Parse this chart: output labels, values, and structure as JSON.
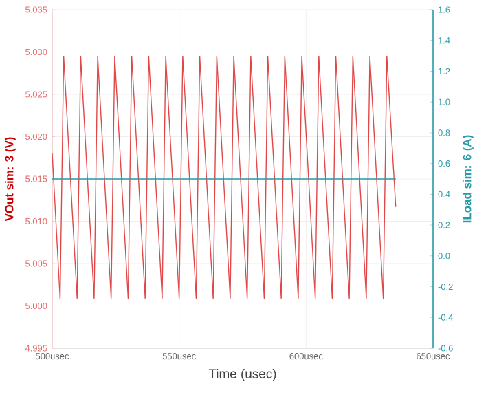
{
  "chart_data": {
    "type": "line",
    "xlabel": "Time (usec)",
    "ylabel": "VOut sim: 3 (V)",
    "y2label": "ILoad sim: 6 (A)",
    "xlim": [
      500,
      650
    ],
    "xticks": [
      {
        "value": 500,
        "label": "500usec"
      },
      {
        "value": 550,
        "label": "550usec"
      },
      {
        "value": 600,
        "label": "600usec"
      },
      {
        "value": 650,
        "label": "650usec"
      }
    ],
    "ylim": [
      4.995,
      5.035
    ],
    "yticks": [
      4.995,
      {
        "value": 5.0,
        "label": "5.000"
      },
      5.005,
      {
        "value": 5.01,
        "label": "5.010"
      },
      5.015,
      {
        "value": 5.02,
        "label": "5.020"
      },
      5.025,
      {
        "value": 5.03,
        "label": "5.030"
      },
      5.035
    ],
    "y2lim": [
      -0.6,
      1.6
    ],
    "y2ticks": [
      -0.6,
      -0.4,
      -0.2,
      {
        "value": 0,
        "label": "0.0"
      },
      0.2,
      0.4,
      0.6,
      0.8,
      {
        "value": 1,
        "label": "1.0"
      },
      1.2,
      1.4,
      1.6
    ],
    "grid": true,
    "series": [
      {
        "color": "#e04848",
        "x": [
          500,
          503.1,
          504.5,
          509.8,
          511.2,
          516.5,
          517.9,
          523.2,
          524.6,
          529.9,
          531.3,
          536.6,
          538.0,
          543.3,
          544.7,
          550.0,
          551.4,
          556.7,
          558.1,
          563.4,
          564.8,
          570.1,
          571.5,
          576.8,
          578.2,
          583.5,
          584.9,
          590.2,
          591.6,
          596.9,
          598.3,
          603.6,
          605.0,
          610.3,
          611.7,
          617.0,
          618.4,
          623.7,
          625.1,
          630.4,
          631.8,
          635.3
        ],
        "values": [
          5.018,
          5.0008,
          5.0295,
          5.0009,
          5.0295,
          5.0009,
          5.0295,
          5.0009,
          5.0295,
          5.0009,
          5.0295,
          5.0009,
          5.0295,
          5.0009,
          5.0295,
          5.0009,
          5.0295,
          5.0009,
          5.0295,
          5.0009,
          5.0295,
          5.0009,
          5.0295,
          5.0009,
          5.0295,
          5.0009,
          5.0295,
          5.0009,
          5.0295,
          5.0009,
          5.0295,
          5.0009,
          5.0295,
          5.0009,
          5.0295,
          5.0009,
          5.0295,
          5.0009,
          5.0295,
          5.0009,
          5.0295,
          5.0117
        ]
      },
      {
        "color": "#2a9aa8",
        "axis": "y2",
        "x": [
          500,
          635.3
        ],
        "values": [
          0.5,
          0.5
        ]
      }
    ]
  }
}
